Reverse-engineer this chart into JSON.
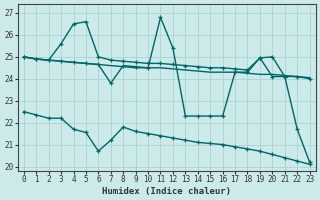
{
  "xlabel": "Humidex (Indice chaleur)",
  "bg_color": "#cceaea",
  "grid_color": "#aad4d4",
  "line_color": "#006666",
  "xlim": [
    -0.5,
    23.5
  ],
  "ylim": [
    19.8,
    27.4
  ],
  "yticks": [
    20,
    21,
    22,
    23,
    24,
    25,
    26,
    27
  ],
  "xticks": [
    0,
    1,
    2,
    3,
    4,
    5,
    6,
    7,
    8,
    9,
    10,
    11,
    12,
    13,
    14,
    15,
    16,
    17,
    18,
    19,
    20,
    21,
    22,
    23
  ],
  "lines": [
    {
      "x": [
        0,
        1,
        2,
        3,
        4,
        5,
        6,
        7,
        8,
        9,
        10,
        11,
        12,
        13,
        14,
        15,
        16,
        17,
        18,
        19,
        20,
        21,
        22,
        23
      ],
      "y": [
        25.0,
        24.9,
        24.85,
        24.8,
        24.75,
        24.7,
        24.65,
        24.6,
        24.55,
        24.5,
        24.5,
        24.5,
        24.45,
        24.4,
        24.35,
        24.3,
        24.3,
        24.3,
        24.25,
        24.2,
        24.2,
        24.15,
        24.1,
        24.05
      ],
      "marker": false,
      "lw": 1.0
    },
    {
      "x": [
        0,
        1,
        2,
        3,
        4,
        5,
        6,
        7,
        8,
        9,
        10,
        11,
        12,
        13,
        14,
        15,
        16,
        17,
        18,
        19,
        20,
        21,
        22,
        23
      ],
      "y": [
        25.0,
        24.9,
        24.85,
        25.6,
        26.5,
        26.6,
        25.0,
        24.85,
        24.8,
        24.75,
        24.7,
        24.7,
        24.65,
        24.6,
        24.55,
        24.5,
        24.5,
        24.45,
        24.4,
        24.95,
        24.1,
        24.1,
        24.1,
        24.0
      ],
      "marker": true,
      "lw": 1.0
    },
    {
      "x": [
        0,
        1,
        2,
        3,
        4,
        5,
        6,
        7,
        8,
        9,
        10,
        11,
        12,
        13,
        14,
        15,
        16,
        17,
        18,
        19,
        20,
        21,
        22,
        23
      ],
      "y": [
        25.0,
        24.9,
        24.85,
        24.8,
        24.75,
        24.7,
        24.65,
        23.8,
        24.6,
        24.55,
        24.5,
        26.8,
        25.4,
        22.3,
        22.3,
        22.3,
        22.3,
        24.3,
        24.3,
        24.95,
        25.0,
        24.1,
        21.7,
        20.2
      ],
      "marker": true,
      "lw": 1.0
    },
    {
      "x": [
        0,
        1,
        2,
        3,
        4,
        5,
        6,
        7,
        8,
        9,
        10,
        11,
        12,
        13,
        14,
        15,
        16,
        17,
        18,
        19,
        20,
        21,
        22,
        23
      ],
      "y": [
        22.5,
        22.35,
        22.2,
        22.2,
        21.7,
        21.55,
        20.7,
        21.2,
        21.8,
        21.6,
        21.5,
        21.4,
        21.3,
        21.2,
        21.1,
        21.05,
        21.0,
        20.9,
        20.8,
        20.7,
        20.55,
        20.4,
        20.25,
        20.1
      ],
      "marker": true,
      "lw": 1.0
    }
  ]
}
